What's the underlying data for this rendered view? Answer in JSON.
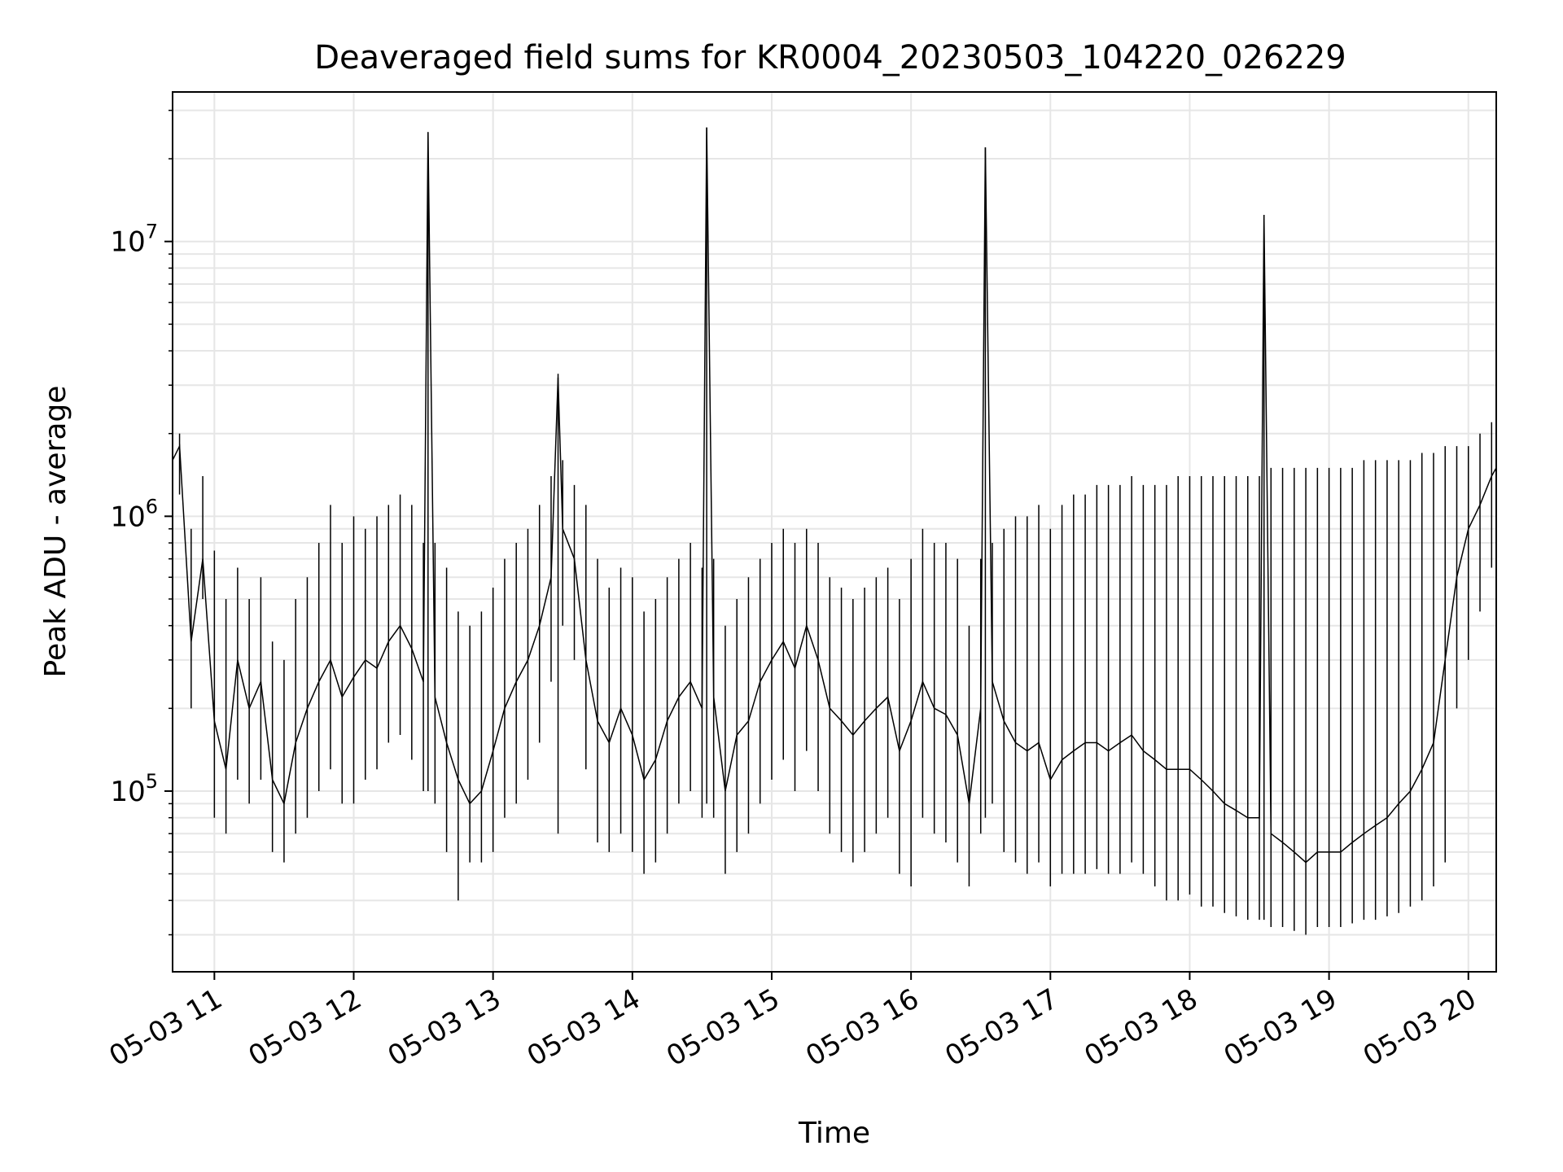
{
  "chart_data": {
    "type": "line",
    "title": "Deaveraged field sums for KR0004_20230503_104220_026229",
    "xlabel": "Time",
    "ylabel": "Peak ADU - average",
    "y_scale": "log",
    "ylim": [
      22000,
      35000000
    ],
    "xlim": [
      "2023-05-03 10:42",
      "2023-05-03 20:12"
    ],
    "grid": true,
    "line_color": "#000000",
    "x_ticks": [
      {
        "value": "2023-05-03 11:00",
        "label": "05-03 11"
      },
      {
        "value": "2023-05-03 12:00",
        "label": "05-03 12"
      },
      {
        "value": "2023-05-03 13:00",
        "label": "05-03 13"
      },
      {
        "value": "2023-05-03 14:00",
        "label": "05-03 14"
      },
      {
        "value": "2023-05-03 15:00",
        "label": "05-03 15"
      },
      {
        "value": "2023-05-03 16:00",
        "label": "05-03 16"
      },
      {
        "value": "2023-05-03 17:00",
        "label": "05-03 17"
      },
      {
        "value": "2023-05-03 18:00",
        "label": "05-03 18"
      },
      {
        "value": "2023-05-03 19:00",
        "label": "05-03 19"
      },
      {
        "value": "2023-05-03 20:00",
        "label": "05-03 20"
      }
    ],
    "y_ticks": [
      {
        "value": 100000,
        "base": "10",
        "exp": "5"
      },
      {
        "value": 1000000,
        "base": "10",
        "exp": "6"
      },
      {
        "value": 10000000,
        "base": "10",
        "exp": "7"
      }
    ],
    "series": [
      {
        "x": [
          "2023-05-03 10:42",
          "2023-05-03 10:45",
          "2023-05-03 10:50",
          "2023-05-03 10:55",
          "2023-05-03 11:00",
          "2023-05-03 11:05",
          "2023-05-03 11:10",
          "2023-05-03 11:15",
          "2023-05-03 11:20",
          "2023-05-03 11:25",
          "2023-05-03 11:30",
          "2023-05-03 11:35",
          "2023-05-03 11:40",
          "2023-05-03 11:45",
          "2023-05-03 11:50",
          "2023-05-03 11:55",
          "2023-05-03 12:00",
          "2023-05-03 12:05",
          "2023-05-03 12:10",
          "2023-05-03 12:15",
          "2023-05-03 12:20",
          "2023-05-03 12:25",
          "2023-05-03 12:30",
          "2023-05-03 12:32",
          "2023-05-03 12:35",
          "2023-05-03 12:40",
          "2023-05-03 12:45",
          "2023-05-03 12:50",
          "2023-05-03 12:55",
          "2023-05-03 13:00",
          "2023-05-03 13:05",
          "2023-05-03 13:10",
          "2023-05-03 13:15",
          "2023-05-03 13:20",
          "2023-05-03 13:25",
          "2023-05-03 13:28",
          "2023-05-03 13:30",
          "2023-05-03 13:35",
          "2023-05-03 13:40",
          "2023-05-03 13:45",
          "2023-05-03 13:50",
          "2023-05-03 13:55",
          "2023-05-03 14:00",
          "2023-05-03 14:05",
          "2023-05-03 14:10",
          "2023-05-03 14:15",
          "2023-05-03 14:20",
          "2023-05-03 14:25",
          "2023-05-03 14:30",
          "2023-05-03 14:32",
          "2023-05-03 14:35",
          "2023-05-03 14:40",
          "2023-05-03 14:45",
          "2023-05-03 14:50",
          "2023-05-03 14:55",
          "2023-05-03 15:00",
          "2023-05-03 15:05",
          "2023-05-03 15:10",
          "2023-05-03 15:15",
          "2023-05-03 15:20",
          "2023-05-03 15:25",
          "2023-05-03 15:30",
          "2023-05-03 15:35",
          "2023-05-03 15:40",
          "2023-05-03 15:45",
          "2023-05-03 15:50",
          "2023-05-03 15:55",
          "2023-05-03 16:00",
          "2023-05-03 16:05",
          "2023-05-03 16:10",
          "2023-05-03 16:15",
          "2023-05-03 16:20",
          "2023-05-03 16:25",
          "2023-05-03 16:30",
          "2023-05-03 16:32",
          "2023-05-03 16:35",
          "2023-05-03 16:40",
          "2023-05-03 16:45",
          "2023-05-03 16:50",
          "2023-05-03 16:55",
          "2023-05-03 17:00",
          "2023-05-03 17:05",
          "2023-05-03 17:10",
          "2023-05-03 17:15",
          "2023-05-03 17:20",
          "2023-05-03 17:25",
          "2023-05-03 17:30",
          "2023-05-03 17:35",
          "2023-05-03 17:40",
          "2023-05-03 17:45",
          "2023-05-03 17:50",
          "2023-05-03 17:55",
          "2023-05-03 18:00",
          "2023-05-03 18:05",
          "2023-05-03 18:10",
          "2023-05-03 18:15",
          "2023-05-03 18:20",
          "2023-05-03 18:25",
          "2023-05-03 18:30",
          "2023-05-03 18:32",
          "2023-05-03 18:35",
          "2023-05-03 18:40",
          "2023-05-03 18:45",
          "2023-05-03 18:50",
          "2023-05-03 18:55",
          "2023-05-03 19:00",
          "2023-05-03 19:05",
          "2023-05-03 19:10",
          "2023-05-03 19:15",
          "2023-05-03 19:20",
          "2023-05-03 19:25",
          "2023-05-03 19:30",
          "2023-05-03 19:35",
          "2023-05-03 19:40",
          "2023-05-03 19:45",
          "2023-05-03 19:50",
          "2023-05-03 19:55",
          "2023-05-03 20:00",
          "2023-05-03 20:05",
          "2023-05-03 20:10",
          "2023-05-03 20:12"
        ],
        "y": [
          1600000,
          1800000,
          350000,
          700000,
          180000,
          120000,
          300000,
          200000,
          250000,
          110000,
          90000,
          150000,
          200000,
          250000,
          300000,
          220000,
          260000,
          300000,
          280000,
          350000,
          400000,
          330000,
          250000,
          25000000,
          220000,
          150000,
          110000,
          90000,
          100000,
          140000,
          200000,
          250000,
          300000,
          400000,
          600000,
          3200000,
          900000,
          700000,
          300000,
          180000,
          150000,
          200000,
          160000,
          110000,
          130000,
          180000,
          220000,
          250000,
          200000,
          26000000,
          220000,
          100000,
          160000,
          180000,
          250000,
          300000,
          350000,
          280000,
          400000,
          300000,
          200000,
          180000,
          160000,
          180000,
          200000,
          220000,
          140000,
          180000,
          250000,
          200000,
          190000,
          160000,
          90000,
          200000,
          22000000,
          250000,
          180000,
          150000,
          140000,
          150000,
          110000,
          130000,
          140000,
          150000,
          150000,
          140000,
          150000,
          160000,
          140000,
          130000,
          120000,
          120000,
          120000,
          110000,
          100000,
          90000,
          85000,
          80000,
          80000,
          12500000,
          70000,
          65000,
          60000,
          55000,
          60000,
          60000,
          60000,
          65000,
          70000,
          75000,
          80000,
          90000,
          100000,
          120000,
          150000,
          300000,
          600000,
          900000,
          1100000,
          1400000,
          1500000
        ],
        "lo": [
          1300000,
          1200000,
          200000,
          500000,
          80000,
          70000,
          110000,
          90000,
          110000,
          60000,
          55000,
          70000,
          80000,
          100000,
          120000,
          90000,
          90000,
          110000,
          120000,
          150000,
          160000,
          130000,
          100000,
          100000,
          90000,
          60000,
          40000,
          55000,
          55000,
          60000,
          80000,
          90000,
          110000,
          150000,
          250000,
          70000,
          400000,
          300000,
          120000,
          65000,
          60000,
          70000,
          60000,
          50000,
          55000,
          70000,
          90000,
          100000,
          80000,
          90000,
          80000,
          50000,
          60000,
          70000,
          90000,
          110000,
          130000,
          100000,
          140000,
          100000,
          70000,
          60000,
          55000,
          60000,
          70000,
          80000,
          50000,
          45000,
          80000,
          70000,
          65000,
          55000,
          45000,
          70000,
          80000,
          90000,
          60000,
          55000,
          50000,
          55000,
          45000,
          50000,
          50000,
          50000,
          52000,
          50000,
          50000,
          55000,
          50000,
          45000,
          40000,
          40000,
          42000,
          38000,
          38000,
          36000,
          35000,
          34000,
          34000,
          34000,
          32000,
          32000,
          31000,
          30000,
          32000,
          32000,
          32000,
          33000,
          34000,
          34000,
          35000,
          36000,
          38000,
          40000,
          45000,
          55000,
          200000,
          300000,
          450000,
          650000,
          700000
        ],
        "hi": [
          2100000,
          2000000,
          900000,
          1400000,
          750000,
          500000,
          650000,
          500000,
          600000,
          350000,
          300000,
          500000,
          600000,
          800000,
          1100000,
          800000,
          1000000,
          900000,
          1000000,
          1100000,
          1200000,
          1100000,
          800000,
          25000000,
          800000,
          650000,
          450000,
          400000,
          450000,
          550000,
          700000,
          800000,
          900000,
          1100000,
          1400000,
          3300000,
          1600000,
          1300000,
          1100000,
          700000,
          550000,
          650000,
          600000,
          450000,
          500000,
          600000,
          700000,
          800000,
          650000,
          26000000,
          700000,
          400000,
          500000,
          600000,
          700000,
          800000,
          900000,
          800000,
          900000,
          800000,
          600000,
          550000,
          500000,
          550000,
          600000,
          650000,
          500000,
          700000,
          900000,
          800000,
          800000,
          700000,
          400000,
          700000,
          22000000,
          800000,
          900000,
          1000000,
          1000000,
          1100000,
          900000,
          1100000,
          1200000,
          1200000,
          1300000,
          1300000,
          1300000,
          1400000,
          1300000,
          1300000,
          1300000,
          1400000,
          1400000,
          1400000,
          1400000,
          1400000,
          1400000,
          1400000,
          1400000,
          12500000,
          1500000,
          1500000,
          1500000,
          1500000,
          1500000,
          1500000,
          1500000,
          1500000,
          1600000,
          1600000,
          1600000,
          1600000,
          1600000,
          1700000,
          1700000,
          1800000,
          1800000,
          1800000,
          2000000,
          2200000,
          2200000
        ]
      }
    ]
  }
}
